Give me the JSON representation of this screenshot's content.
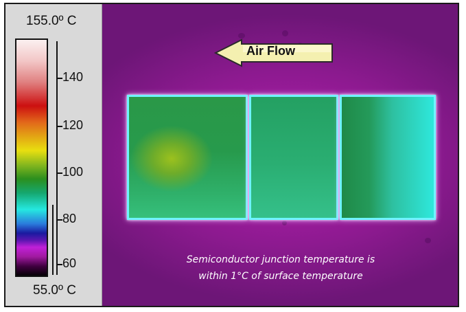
{
  "scale": {
    "max_label": "155.0º C",
    "min_label": "55.0º C",
    "ticks": [
      "140",
      "120",
      "100",
      "80",
      "60"
    ]
  },
  "image": {
    "arrow_label": "Air Flow",
    "caption_line1": "Semiconductor junction temperature is",
    "caption_line2": "within 1°C of surface temperature"
  },
  "colors": {
    "background": "#a21aa6",
    "component_cool": "#2ee8dc",
    "component_warm": "#9cc11e",
    "arrow_fill": "#f4f0b0"
  }
}
